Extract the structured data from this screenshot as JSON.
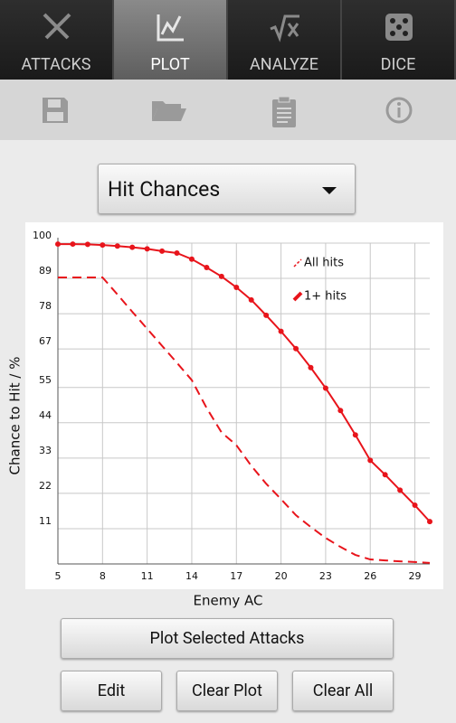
{
  "tabs": [
    "ATTACKS",
    "PLOT",
    "ANALYZE",
    "DICE"
  ],
  "dropdown": "Hit Chances",
  "chart_data": {
    "type": "line",
    "x_label": "Enemy AC",
    "y_label": "Chance to Hit / %",
    "x": [
      5,
      6,
      7,
      8,
      9,
      10,
      11,
      12,
      13,
      14,
      15,
      16,
      17,
      18,
      19,
      20,
      21,
      22,
      23,
      24,
      25,
      26,
      27,
      28,
      29,
      30
    ],
    "series": [
      {
        "name": "All hits",
        "color": "#e8141b",
        "style": "dashed",
        "markers": false,
        "values": [
          89.3,
          89.3,
          89.3,
          89.3,
          84,
          78.6,
          73.3,
          68,
          62.7,
          57.3,
          48.6,
          41,
          37,
          30.6,
          25,
          20.2,
          15.2,
          11.5,
          8.1,
          5.3,
          2.8,
          1.4,
          1.1,
          0.8,
          0.6,
          0.3
        ]
      },
      {
        "name": "1+ hits",
        "color": "#e8141b",
        "style": "solid",
        "markers": true,
        "values": [
          99.7,
          99.7,
          99.6,
          99.4,
          99.1,
          98.7,
          98.2,
          97.5,
          96.9,
          95,
          92.4,
          89.6,
          86.2,
          82.3,
          77.5,
          72.5,
          67.1,
          61.2,
          54.8,
          47.8,
          40.2,
          32.3,
          27.8,
          23,
          18.3,
          13.2
        ]
      }
    ],
    "xlim": [
      5,
      30
    ],
    "xticks": [
      5,
      8,
      11,
      14,
      17,
      20,
      23,
      26,
      29
    ],
    "ylim": [
      0,
      100
    ],
    "yticks": [
      11,
      22,
      33,
      44,
      55,
      67,
      78,
      89,
      100
    ],
    "grid": true,
    "legend": "upper right"
  },
  "buttons": {
    "plot": "Plot Selected Attacks",
    "edit": "Edit",
    "clear_plot": "Clear Plot",
    "clear_all": "Clear All"
  }
}
